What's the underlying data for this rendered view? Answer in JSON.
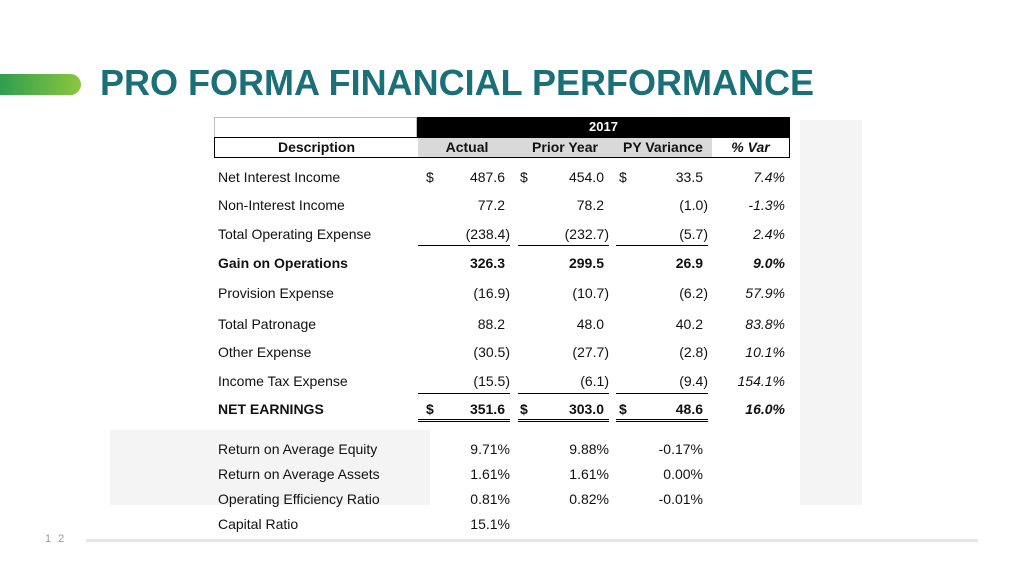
{
  "slide": {
    "title": "PRO FORMA FINANCIAL PERFORMANCE",
    "page_number": "1 2"
  },
  "table": {
    "year": "2017",
    "headers": {
      "description": "Description",
      "actual": "Actual",
      "prior_year": "Prior Year",
      "py_variance": "PY Variance",
      "pct_var": "% Var"
    },
    "rows": [
      {
        "label": "Net Interest Income",
        "actual": "487.6",
        "prior": "454.0",
        "variance": "33.5",
        "pct": "7.4%",
        "dollar": "$"
      },
      {
        "label": "Non-Interest Income",
        "actual": "77.2",
        "prior": "78.2",
        "variance": "(1.0)",
        "pct": "-1.3%"
      },
      {
        "label": "Total Operating Expense",
        "actual": "(238.4)",
        "prior": "(232.7)",
        "variance": "(5.7)",
        "pct": "2.4%"
      },
      {
        "label": "Gain on Operations",
        "actual": "326.3",
        "prior": "299.5",
        "variance": "26.9",
        "pct": "9.0%"
      },
      {
        "label": "Provision Expense",
        "actual": "(16.9)",
        "prior": "(10.7)",
        "variance": "(6.2)",
        "pct": "57.9%"
      },
      {
        "label": "Total Patronage",
        "actual": "88.2",
        "prior": "48.0",
        "variance": "40.2",
        "pct": "83.8%"
      },
      {
        "label": "Other Expense",
        "actual": "(30.5)",
        "prior": "(27.7)",
        "variance": "(2.8)",
        "pct": "10.1%"
      },
      {
        "label": "Income Tax Expense",
        "actual": "(15.5)",
        "prior": "(6.1)",
        "variance": "(9.4)",
        "pct": "154.1%"
      },
      {
        "label": "NET EARNINGS",
        "actual": "351.6",
        "prior": "303.0",
        "variance": "48.6",
        "pct": "16.0%",
        "dollar": "$"
      }
    ],
    "ratios": [
      {
        "label": "Return on Average Equity",
        "actual": "9.71%",
        "prior": "9.88%",
        "variance": "-0.17%"
      },
      {
        "label": "Return on Average Assets",
        "actual": "1.61%",
        "prior": "1.61%",
        "variance": "0.00%"
      },
      {
        "label": "Operating Efficiency Ratio",
        "actual": "0.81%",
        "prior": "0.82%",
        "variance": "-0.01%"
      },
      {
        "label": "Capital Ratio",
        "actual": "15.1%"
      }
    ]
  },
  "colors": {
    "title": "#1a6f78",
    "accent_start": "#2f9e4f",
    "accent_end": "#8cc63f",
    "header_bg": "#000000",
    "header_gray": "#d9d9d9"
  }
}
